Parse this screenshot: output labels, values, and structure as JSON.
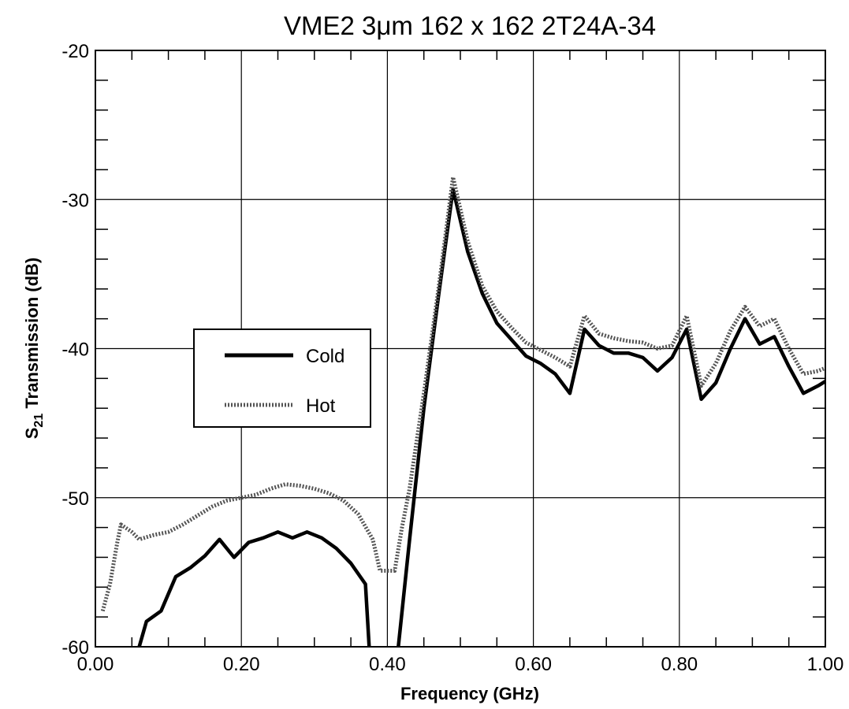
{
  "chart_data": {
    "type": "line",
    "title": "VME2  3μm  162 x 162    2T24A-34",
    "xlabel": "Frequency (GHz)",
    "ylabel_main": "S",
    "ylabel_sub": "21",
    "ylabel_rest": "  Transmission (dB)",
    "xlim": [
      0.0,
      1.0
    ],
    "ylim": [
      -60,
      -20
    ],
    "xticks": [
      0.0,
      0.2,
      0.4,
      0.6,
      0.8,
      1.0
    ],
    "xtick_labels": [
      "0.00",
      "0.20",
      "0.40",
      "0.60",
      "0.80",
      "1.00"
    ],
    "yticks": [
      -60,
      -50,
      -40,
      -30,
      -20
    ],
    "ytick_labels": [
      "-60",
      "-50",
      "-40",
      "-30",
      "-20"
    ],
    "grid": true,
    "legend_position": "middle-left",
    "series": [
      {
        "name": "Cold",
        "style": "solid",
        "points": [
          [
            0.06,
            -60.0
          ],
          [
            0.07,
            -58.3
          ],
          [
            0.09,
            -57.6
          ],
          [
            0.11,
            -55.3
          ],
          [
            0.13,
            -54.7
          ],
          [
            0.15,
            -53.9
          ],
          [
            0.17,
            -52.8
          ],
          [
            0.19,
            -54.0
          ],
          [
            0.21,
            -53.0
          ],
          [
            0.23,
            -52.7
          ],
          [
            0.25,
            -52.3
          ],
          [
            0.27,
            -52.7
          ],
          [
            0.29,
            -52.3
          ],
          [
            0.31,
            -52.7
          ],
          [
            0.33,
            -53.4
          ],
          [
            0.35,
            -54.4
          ],
          [
            0.37,
            -55.8
          ],
          [
            0.375,
            -60.0
          ],
          null,
          [
            0.415,
            -60.0
          ],
          [
            0.43,
            -53.0
          ],
          [
            0.45,
            -44.0
          ],
          [
            0.47,
            -36.5
          ],
          [
            0.49,
            -29.3
          ],
          [
            0.51,
            -33.5
          ],
          [
            0.53,
            -36.3
          ],
          [
            0.55,
            -38.3
          ],
          [
            0.57,
            -39.4
          ],
          [
            0.59,
            -40.5
          ],
          [
            0.61,
            -41.0
          ],
          [
            0.63,
            -41.7
          ],
          [
            0.65,
            -43.0
          ],
          [
            0.67,
            -38.7
          ],
          [
            0.69,
            -39.8
          ],
          [
            0.71,
            -40.3
          ],
          [
            0.73,
            -40.3
          ],
          [
            0.75,
            -40.6
          ],
          [
            0.77,
            -41.5
          ],
          [
            0.79,
            -40.6
          ],
          [
            0.81,
            -38.7
          ],
          [
            0.83,
            -43.4
          ],
          [
            0.85,
            -42.3
          ],
          [
            0.87,
            -40.0
          ],
          [
            0.89,
            -38.0
          ],
          [
            0.91,
            -39.7
          ],
          [
            0.93,
            -39.2
          ],
          [
            0.95,
            -41.2
          ],
          [
            0.97,
            -43.0
          ],
          [
            0.99,
            -42.5
          ],
          [
            1.0,
            -42.2
          ]
        ]
      },
      {
        "name": "Hot",
        "style": "dotted",
        "points": [
          [
            0.01,
            -57.6
          ],
          [
            0.02,
            -55.8
          ],
          [
            0.03,
            -53.0
          ],
          [
            0.035,
            -51.8
          ],
          [
            0.05,
            -52.3
          ],
          [
            0.06,
            -52.8
          ],
          [
            0.08,
            -52.5
          ],
          [
            0.1,
            -52.3
          ],
          [
            0.12,
            -51.8
          ],
          [
            0.14,
            -51.2
          ],
          [
            0.16,
            -50.6
          ],
          [
            0.18,
            -50.2
          ],
          [
            0.2,
            -50.0
          ],
          [
            0.22,
            -49.8
          ],
          [
            0.24,
            -49.4
          ],
          [
            0.26,
            -49.1
          ],
          [
            0.28,
            -49.2
          ],
          [
            0.3,
            -49.4
          ],
          [
            0.32,
            -49.7
          ],
          [
            0.34,
            -50.2
          ],
          [
            0.36,
            -51.1
          ],
          [
            0.38,
            -52.8
          ],
          [
            0.39,
            -54.9
          ],
          [
            0.41,
            -54.9
          ],
          [
            0.42,
            -52.0
          ],
          [
            0.43,
            -49.5
          ],
          [
            0.45,
            -43.0
          ],
          [
            0.47,
            -36.0
          ],
          [
            0.49,
            -28.5
          ],
          [
            0.51,
            -32.8
          ],
          [
            0.53,
            -35.8
          ],
          [
            0.55,
            -37.5
          ],
          [
            0.57,
            -38.6
          ],
          [
            0.59,
            -39.6
          ],
          [
            0.61,
            -40.1
          ],
          [
            0.63,
            -40.6
          ],
          [
            0.65,
            -41.2
          ],
          [
            0.67,
            -37.8
          ],
          [
            0.69,
            -39.0
          ],
          [
            0.71,
            -39.3
          ],
          [
            0.73,
            -39.5
          ],
          [
            0.75,
            -39.6
          ],
          [
            0.77,
            -40.0
          ],
          [
            0.79,
            -39.8
          ],
          [
            0.81,
            -37.8
          ],
          [
            0.83,
            -42.5
          ],
          [
            0.85,
            -41.0
          ],
          [
            0.87,
            -38.8
          ],
          [
            0.89,
            -37.2
          ],
          [
            0.91,
            -38.5
          ],
          [
            0.93,
            -38.0
          ],
          [
            0.95,
            -40.0
          ],
          [
            0.97,
            -41.7
          ],
          [
            0.99,
            -41.5
          ],
          [
            1.0,
            -41.3
          ]
        ]
      }
    ]
  }
}
